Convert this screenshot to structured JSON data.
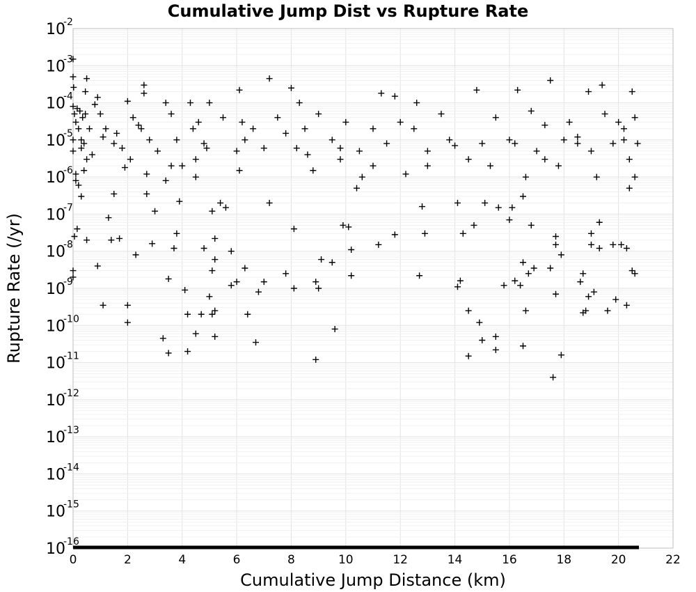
{
  "chart_data": {
    "type": "scatter",
    "title": "Cumulative Jump Dist vs Rupture Rate",
    "xlabel": "Cumulative Jump Distance (km)",
    "ylabel": "Rupture Rate (/yr)",
    "xlim": [
      0,
      22
    ],
    "ylim": [
      1e-16,
      0.01
    ],
    "y_scale": "log",
    "grid": true,
    "marker": "plus",
    "marker_color": "#000000",
    "x_ticks": [
      0,
      2,
      4,
      6,
      8,
      10,
      12,
      14,
      16,
      18,
      20,
      22
    ],
    "y_tick_base": "10",
    "y_tick_exponents": [
      "-16",
      "-15",
      "-14",
      "-13",
      "-12",
      "-11",
      "-10",
      "-9",
      "-8",
      "-7",
      "-6",
      "-5",
      "-4",
      "-3",
      "-2"
    ],
    "points": [
      [
        0.0,
        0.0015
      ],
      [
        0.0,
        0.0005
      ],
      [
        0.02,
        0.00026
      ],
      [
        0.0,
        8e-05
      ],
      [
        0.05,
        5e-05
      ],
      [
        0.1,
        3e-05
      ],
      [
        0.15,
        7e-05
      ],
      [
        0.2,
        2e-05
      ],
      [
        0.25,
        6e-05
      ],
      [
        0.3,
        1e-05
      ],
      [
        0.35,
        4e-05
      ],
      [
        0.4,
        8e-06
      ],
      [
        0.45,
        5e-05
      ],
      [
        0.5,
        3e-06
      ],
      [
        0.1,
        1.2e-06
      ],
      [
        0.2,
        6e-07
      ],
      [
        0.3,
        3e-07
      ],
      [
        0.05,
        2.5e-08
      ],
      [
        0.0,
        3e-09
      ],
      [
        0.0,
        2e-09
      ],
      [
        0.45,
        0.0002
      ],
      [
        0.5,
        0.00045
      ],
      [
        0.15,
        4e-08
      ],
      [
        0.5,
        2e-08
      ],
      [
        0.9,
        4e-09
      ],
      [
        1.1,
        3.5e-10
      ],
      [
        0.8,
        9e-05
      ],
      [
        1.0,
        5e-05
      ],
      [
        1.2,
        2e-05
      ],
      [
        0.9,
        0.00014
      ],
      [
        1.3,
        8e-08
      ],
      [
        1.5,
        3.5e-07
      ],
      [
        1.7,
        2.2e-08
      ],
      [
        1.4,
        2e-08
      ],
      [
        1.6,
        1.5e-05
      ],
      [
        1.8,
        6e-06
      ],
      [
        2.0,
        0.00011
      ],
      [
        2.1,
        3e-06
      ],
      [
        1.9,
        1.8e-06
      ],
      [
        2.0,
        3.5e-10
      ],
      [
        2.0,
        1.2e-10
      ],
      [
        2.3,
        8e-09
      ],
      [
        2.6,
        0.0003
      ],
      [
        2.6,
        0.00018
      ],
      [
        2.5,
        2e-05
      ],
      [
        2.7,
        3.5e-07
      ],
      [
        3.0,
        1.2e-07
      ],
      [
        2.9,
        1.6e-08
      ],
      [
        3.3,
        4.5e-11
      ],
      [
        3.5,
        1.8e-11
      ],
      [
        3.5,
        1.8e-09
      ],
      [
        3.7,
        1.2e-08
      ],
      [
        3.8,
        3e-08
      ],
      [
        3.9,
        2.2e-07
      ],
      [
        3.4,
        0.0001
      ],
      [
        3.6,
        5e-05
      ],
      [
        3.8,
        1e-05
      ],
      [
        4.0,
        2e-06
      ],
      [
        4.1,
        9e-10
      ],
      [
        4.2,
        2e-10
      ],
      [
        4.2,
        2e-11
      ],
      [
        4.5,
        6e-11
      ],
      [
        4.7,
        2e-10
      ],
      [
        4.8,
        1.2e-08
      ],
      [
        4.5,
        3e-06
      ],
      [
        4.8,
        8e-06
      ],
      [
        5.0,
        0.0001
      ],
      [
        4.3,
        0.0001
      ],
      [
        4.6,
        3e-05
      ],
      [
        5.0,
        6e-10
      ],
      [
        5.1,
        3e-09
      ],
      [
        5.2,
        6e-09
      ],
      [
        5.1,
        2e-10
      ],
      [
        5.2,
        2.5e-10
      ],
      [
        5.2,
        5e-11
      ],
      [
        5.1,
        1.2e-07
      ],
      [
        5.2,
        2.2e-08
      ],
      [
        5.4,
        2e-07
      ],
      [
        5.6,
        1.5e-07
      ],
      [
        5.8,
        1e-08
      ],
      [
        5.8,
        1.2e-09
      ],
      [
        6.0,
        1.5e-09
      ],
      [
        6.1,
        0.00022
      ],
      [
        6.2,
        3e-05
      ],
      [
        6.3,
        3.5e-09
      ],
      [
        6.4,
        2e-10
      ],
      [
        6.7,
        3.5e-11
      ],
      [
        6.8,
        8e-10
      ],
      [
        7.0,
        1.5e-09
      ],
      [
        7.2,
        2e-07
      ],
      [
        7.2,
        0.00045
      ],
      [
        7.5,
        4e-05
      ],
      [
        7.8,
        2.5e-09
      ],
      [
        8.0,
        0.00025
      ],
      [
        8.1,
        4e-08
      ],
      [
        8.1,
        1e-09
      ],
      [
        8.3,
        0.0001
      ],
      [
        8.5,
        2e-05
      ],
      [
        8.9,
        1.5e-09
      ],
      [
        9.0,
        1e-09
      ],
      [
        8.9,
        1.2e-11
      ],
      [
        9.1,
        6e-09
      ],
      [
        9.5,
        5e-09
      ],
      [
        9.6,
        8e-11
      ],
      [
        9.9,
        5e-08
      ],
      [
        10.1,
        4.5e-08
      ],
      [
        10.2,
        1.1e-08
      ],
      [
        10.2,
        2.2e-09
      ],
      [
        10.4,
        5e-07
      ],
      [
        9.8,
        6e-06
      ],
      [
        10.0,
        3e-05
      ],
      [
        11.2,
        1.5e-08
      ],
      [
        11.3,
        0.00018
      ],
      [
        11.8,
        0.00015
      ],
      [
        11.8,
        2.8e-08
      ],
      [
        12.7,
        2.2e-09
      ],
      [
        12.8,
        1.6e-07
      ],
      [
        12.9,
        3e-08
      ],
      [
        12.5,
        2e-05
      ],
      [
        13.0,
        5e-06
      ],
      [
        14.1,
        1.1e-09
      ],
      [
        14.2,
        1.6e-09
      ],
      [
        14.1,
        2e-07
      ],
      [
        14.3,
        3e-08
      ],
      [
        14.5,
        2.5e-10
      ],
      [
        14.5,
        1.5e-11
      ],
      [
        14.7,
        5e-08
      ],
      [
        14.9,
        1.2e-10
      ],
      [
        15.0,
        4e-11
      ],
      [
        15.1,
        2e-07
      ],
      [
        14.8,
        0.00022
      ],
      [
        15.5,
        5e-11
      ],
      [
        15.5,
        2.2e-11
      ],
      [
        15.6,
        1.5e-07
      ],
      [
        15.8,
        1.2e-09
      ],
      [
        16.0,
        7e-08
      ],
      [
        16.1,
        1.5e-07
      ],
      [
        16.2,
        1.6e-09
      ],
      [
        16.4,
        1.2e-09
      ],
      [
        16.5,
        5e-09
      ],
      [
        16.5,
        2.8e-11
      ],
      [
        16.6,
        2.5e-10
      ],
      [
        16.7,
        2.5e-09
      ],
      [
        16.8,
        5e-08
      ],
      [
        16.9,
        3.5e-09
      ],
      [
        16.3,
        0.00022
      ],
      [
        16.5,
        3e-07
      ],
      [
        17.5,
        0.0004
      ],
      [
        17.5,
        3.5e-09
      ],
      [
        17.6,
        4e-12
      ],
      [
        17.7,
        7e-10
      ],
      [
        17.7,
        2.5e-08
      ],
      [
        17.7,
        1.5e-08
      ],
      [
        17.9,
        1.6e-11
      ],
      [
        17.9,
        8e-09
      ],
      [
        18.6,
        1.5e-09
      ],
      [
        18.7,
        2.5e-09
      ],
      [
        18.7,
        2.2e-10
      ],
      [
        18.8,
        2.5e-10
      ],
      [
        18.9,
        6e-10
      ],
      [
        19.0,
        3e-08
      ],
      [
        19.0,
        1.5e-08
      ],
      [
        19.1,
        8e-10
      ],
      [
        19.3,
        6e-08
      ],
      [
        19.3,
        1.2e-08
      ],
      [
        19.6,
        2.5e-10
      ],
      [
        19.8,
        1.5e-08
      ],
      [
        19.9,
        5e-10
      ],
      [
        20.1,
        1.5e-08
      ],
      [
        20.3,
        1.2e-08
      ],
      [
        20.3,
        3.5e-10
      ],
      [
        20.5,
        3e-09
      ],
      [
        20.6,
        2.5e-09
      ],
      [
        20.0,
        3e-05
      ],
      [
        20.2,
        1e-05
      ],
      [
        20.5,
        0.0002
      ],
      [
        19.4,
        0.0003
      ],
      [
        18.9,
        0.0002
      ],
      [
        20.6,
        4e-05
      ],
      [
        20.4,
        3e-06
      ],
      [
        19.5,
        5e-05
      ],
      [
        18.2,
        3e-05
      ],
      [
        18.5,
        8e-06
      ],
      [
        17.8,
        2e-06
      ],
      [
        17.0,
        5e-06
      ],
      [
        16.0,
        1e-05
      ],
      [
        15.5,
        4e-05
      ],
      [
        15.0,
        8e-06
      ],
      [
        14.5,
        3e-06
      ],
      [
        13.8,
        1e-05
      ],
      [
        13.5,
        5e-05
      ],
      [
        13.0,
        2e-06
      ],
      [
        12.0,
        3e-05
      ],
      [
        11.5,
        8e-06
      ],
      [
        11.0,
        2e-05
      ],
      [
        10.5,
        5e-06
      ],
      [
        9.5,
        1e-05
      ],
      [
        9.0,
        5e-05
      ],
      [
        8.6,
        4e-06
      ],
      [
        7.8,
        1.5e-05
      ],
      [
        7.0,
        6e-06
      ],
      [
        6.6,
        2e-05
      ],
      [
        6.0,
        5e-06
      ],
      [
        5.5,
        4e-05
      ],
      [
        4.4,
        2e-05
      ],
      [
        3.6,
        2e-06
      ],
      [
        2.8,
        1e-05
      ],
      [
        2.2,
        4e-05
      ],
      [
        1.5,
        8e-06
      ],
      [
        0.6,
        2e-05
      ],
      [
        0.7,
        4e-06
      ],
      [
        0.0,
        5e-06
      ],
      [
        0.0,
        1e-05
      ],
      [
        0.1,
        8e-07
      ],
      [
        0.3,
        6e-06
      ],
      [
        12.6,
        0.0001
      ],
      [
        16.2,
        8e-06
      ],
      [
        16.8,
        6e-05
      ],
      [
        17.3,
        2.5e-05
      ],
      [
        18.0,
        1e-05
      ],
      [
        19.0,
        5e-06
      ],
      [
        19.8,
        8e-06
      ],
      [
        20.2,
        2e-05
      ],
      [
        14.0,
        7e-06
      ],
      [
        9.8,
        3e-06
      ],
      [
        8.2,
        6e-06
      ],
      [
        6.3,
        1e-05
      ],
      [
        4.9,
        6e-06
      ],
      [
        3.1,
        5e-06
      ],
      [
        2.4,
        2.5e-05
      ],
      [
        1.1,
        1.2e-05
      ],
      [
        0.4,
        1.5e-06
      ],
      [
        20.7,
        8e-06
      ],
      [
        20.6,
        1e-06
      ],
      [
        20.4,
        5e-07
      ],
      [
        19.2,
        1e-06
      ],
      [
        18.5,
        1.2e-05
      ],
      [
        17.3,
        3e-06
      ],
      [
        16.6,
        1e-06
      ],
      [
        15.3,
        2e-06
      ],
      [
        12.2,
        1.2e-06
      ],
      [
        11.0,
        2e-06
      ],
      [
        10.6,
        1e-06
      ],
      [
        8.8,
        1.5e-06
      ],
      [
        6.1,
        1.5e-06
      ],
      [
        4.5,
        1e-06
      ],
      [
        3.4,
        8e-07
      ],
      [
        2.7,
        1.2e-06
      ]
    ]
  }
}
